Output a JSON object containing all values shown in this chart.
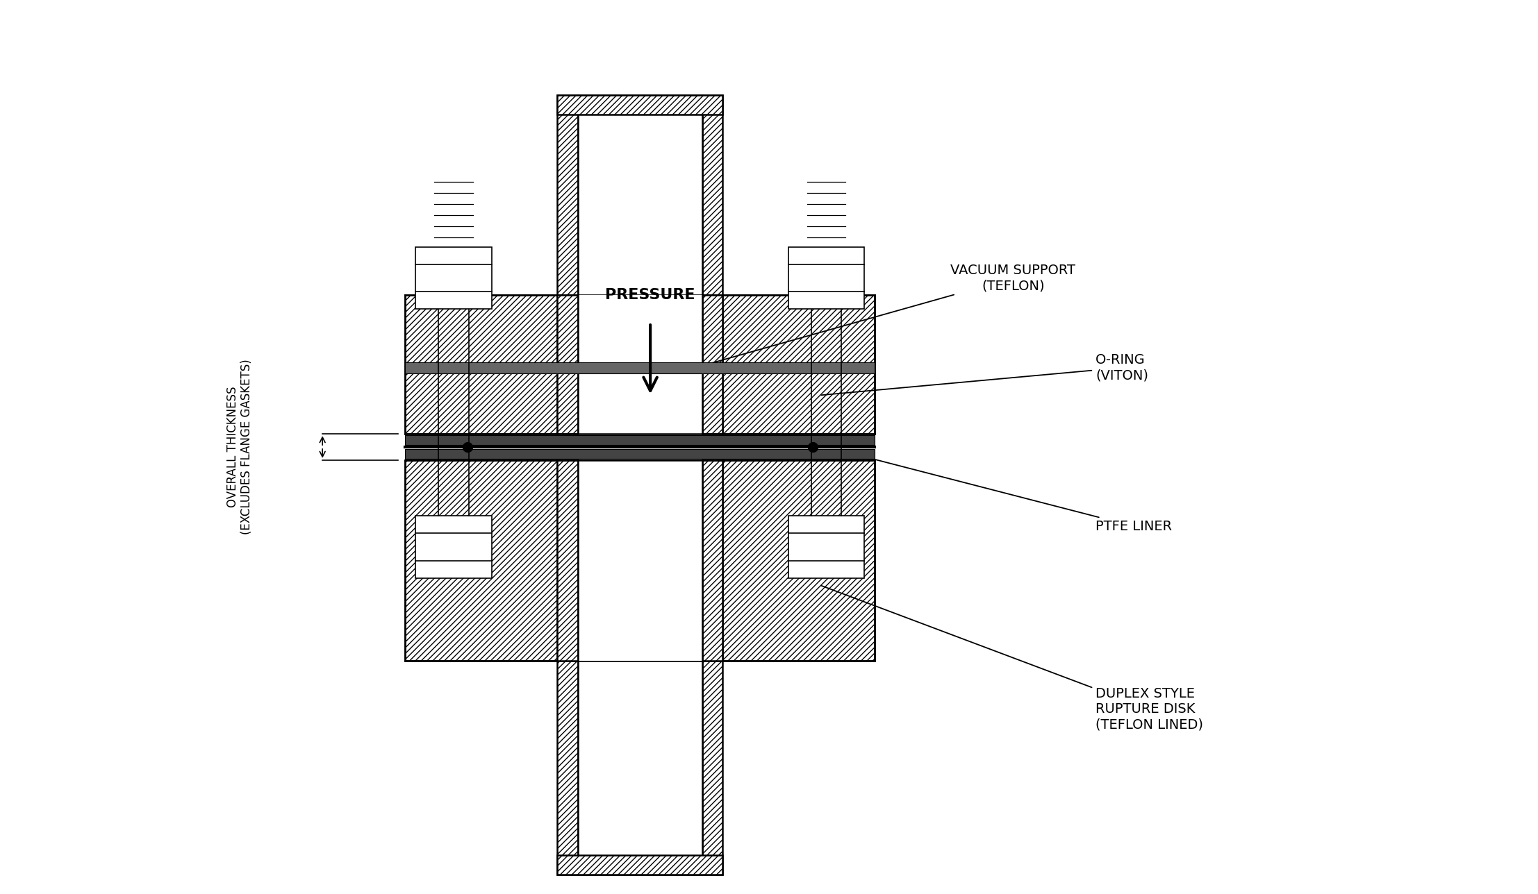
{
  "bg_color": "#ffffff",
  "line_color": "#000000",
  "fig_width": 22.14,
  "fig_height": 12.88,
  "labels": {
    "duplex": "DUPLEX STYLE\nRUPTURE DISK\n(TEFLON LINED)",
    "ptfe": "PTFE LINER",
    "oring": "O-RING\n(VITON)",
    "vacuum": "VACUUM SUPPORT\n(TEFLON)",
    "pressure": "PRESSURE",
    "overall": "OVERALL THICKNESS\n(EXCLUDES FLANGE GASKETS)"
  },
  "label_fontsize": 14
}
